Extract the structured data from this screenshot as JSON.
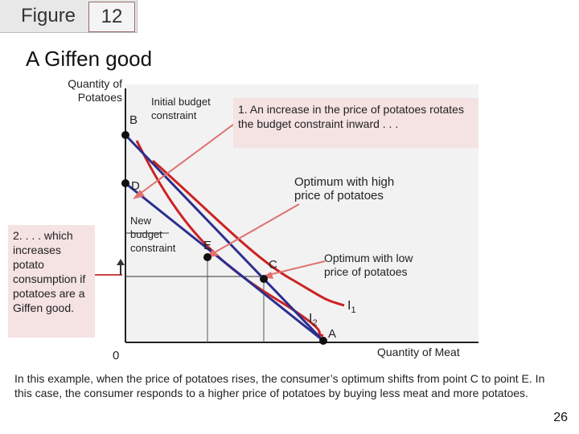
{
  "header": {
    "figure_word": "Figure",
    "figure_number": "12"
  },
  "title": "A Giffen good",
  "y_axis_label": "Quantity of\nPotatoes",
  "x_axis_label": "Quantity of Meat",
  "origin_label": "0",
  "points": {
    "B": "B",
    "D": "D",
    "E": "E",
    "C": "C",
    "A": "A"
  },
  "curve_labels": {
    "I1": "I",
    "I1_sub": "1",
    "I2": "I",
    "I2_sub": "2"
  },
  "labels": {
    "initial_budget": "Initial budget\nconstraint",
    "new_budget": "New\nbudget\nconstraint",
    "optimum_high": "Optimum with high\nprice of potatoes",
    "optimum_low": "Optimum with low\nprice of potatoes"
  },
  "notes": {
    "note1": "1. An increase in the price of potatoes rotates the budget constraint inward . . .",
    "note2": "2. . . . which increases potato consumption if potatoes are a Giffen good."
  },
  "caption": "In this example, when the price of potatoes rises, the consumer’s optimum shifts from point C to point E. In this case, the consumer responds to a higher price of potatoes by buying less meat and more potatoes.",
  "page_number": "26",
  "colors": {
    "budget_line": "#2b2f8f",
    "indifference": "#cc2222",
    "note_bg": "#f5e2e2"
  }
}
